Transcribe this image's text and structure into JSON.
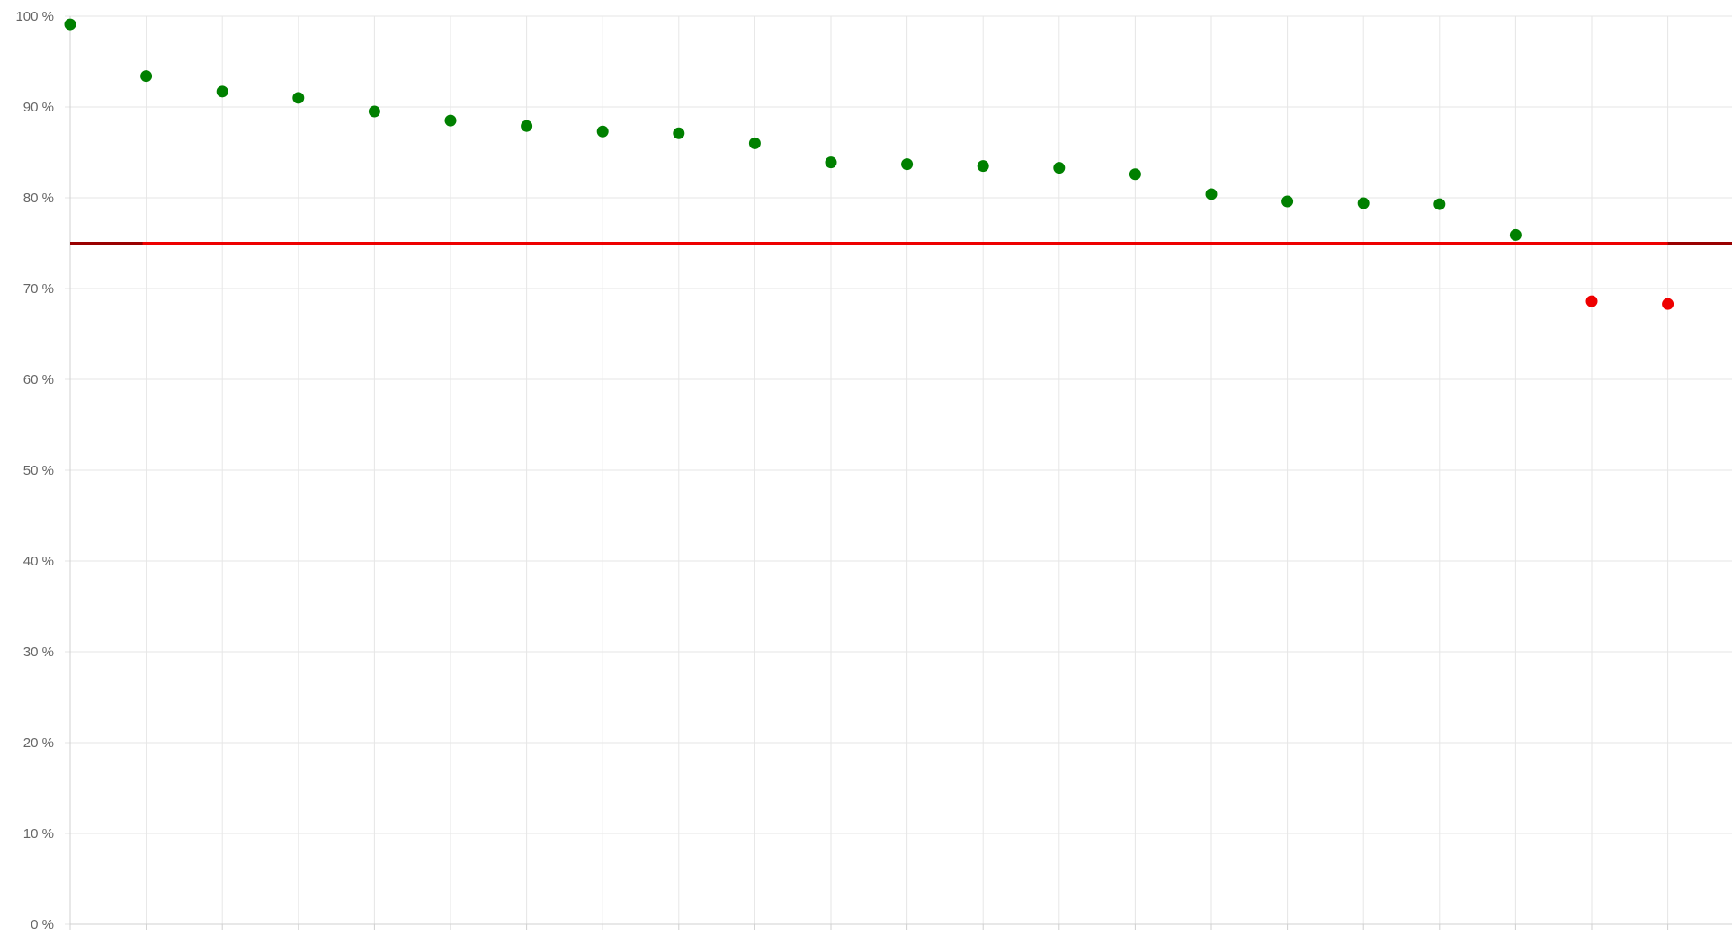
{
  "chart_data": {
    "type": "scatter",
    "title": "",
    "xlabel": "",
    "ylabel": "",
    "y_ticks": [
      "0 %",
      "10 %",
      "20 %",
      "30 %",
      "40 %",
      "50 %",
      "60 %",
      "70 %",
      "80 %",
      "90 %",
      "100 %"
    ],
    "ylim": [
      0,
      100
    ],
    "x": [
      1,
      2,
      3,
      4,
      5,
      6,
      7,
      8,
      9,
      10,
      11,
      12,
      13,
      14,
      15,
      16,
      17,
      18,
      19,
      20,
      21,
      22
    ],
    "values": [
      99.1,
      93.4,
      91.7,
      91.0,
      89.5,
      88.5,
      87.9,
      87.3,
      87.1,
      86.0,
      83.9,
      83.7,
      83.5,
      83.3,
      82.6,
      80.4,
      79.6,
      79.4,
      79.3,
      75.9,
      68.6,
      68.3
    ],
    "threshold": 75,
    "grid": true,
    "legend": "none",
    "colors": {
      "above_threshold": "#008000",
      "below_threshold": "#ee0000",
      "threshold_line": "#ee0000",
      "threshold_line_edge": "#990000"
    }
  }
}
